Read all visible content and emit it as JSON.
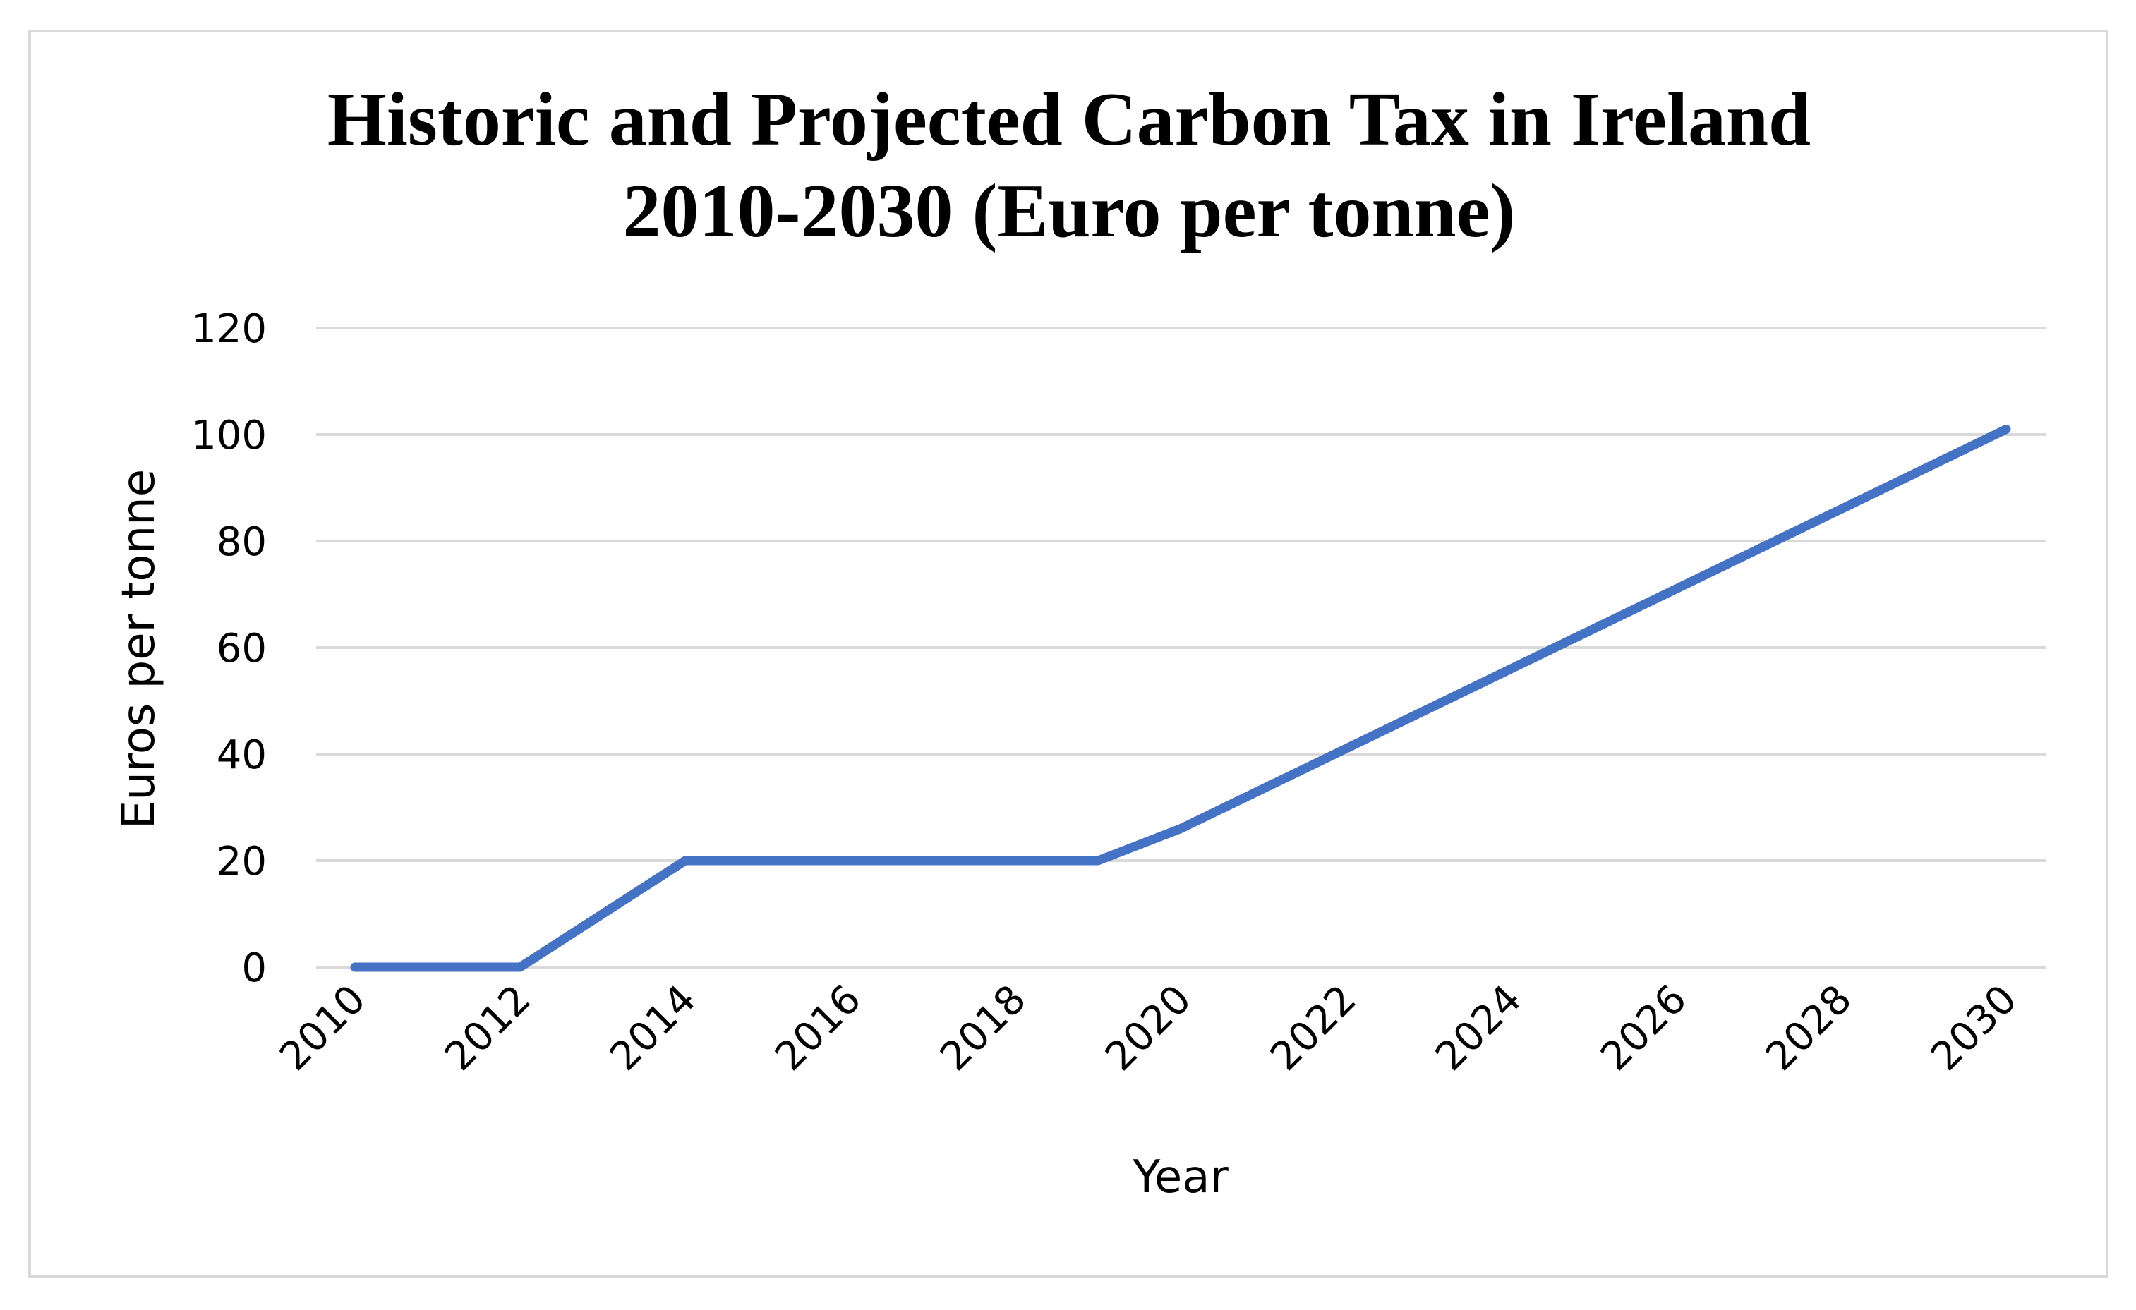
{
  "chart_data": {
    "type": "line",
    "title": [
      "Historic and Projected Carbon Tax in Ireland",
      "2010-2030 (Euro per tonne)"
    ],
    "xlabel": "Year",
    "ylabel": "Euros per tonne",
    "ylim": [
      0,
      120
    ],
    "yticks": [
      "0",
      "20",
      "40",
      "60",
      "80",
      "100",
      "120"
    ],
    "xlim": [
      2010,
      2030
    ],
    "xticks": [
      "2010",
      "2012",
      "2014",
      "2016",
      "2018",
      "2020",
      "2022",
      "2024",
      "2026",
      "2028",
      "2030"
    ],
    "grid": true,
    "legend": "none",
    "series": [
      {
        "name": "Carbon tax",
        "color": "#4472c4",
        "points": [
          {
            "x": 2010,
            "y": 0
          },
          {
            "x": 2012,
            "y": 0
          },
          {
            "x": 2014,
            "y": 20
          },
          {
            "x": 2019,
            "y": 20
          },
          {
            "x": 2020,
            "y": 26
          },
          {
            "x": 2030,
            "y": 101
          }
        ]
      }
    ]
  }
}
